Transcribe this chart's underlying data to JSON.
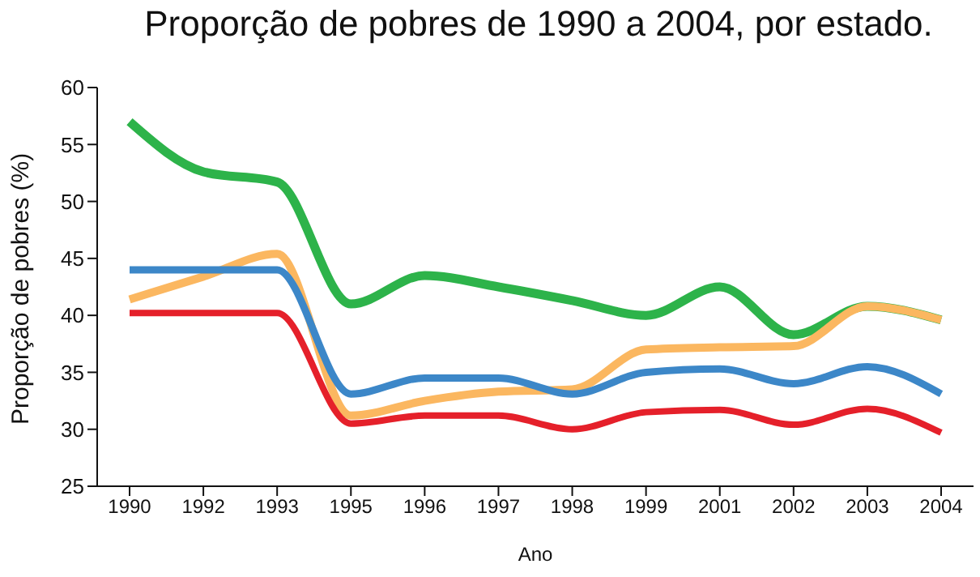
{
  "chart_data": {
    "type": "line",
    "title": "Proporção de pobres de 1990 a 2004, por estado.",
    "xlabel": "Ano",
    "ylabel": "Proporção de pobres (%)",
    "categories": [
      "1990",
      "1992",
      "1993",
      "1995",
      "1996",
      "1997",
      "1998",
      "1999",
      "2001",
      "2002",
      "2003",
      "2004"
    ],
    "series": [
      {
        "color": "#2db34a",
        "values": [
          57,
          52.6,
          51.7,
          41,
          43.5,
          42.5,
          41.3,
          40,
          42.5,
          38.3,
          40.8,
          39.6
        ]
      },
      {
        "color": "#fbb760",
        "values": [
          41.4,
          43.4,
          45.4,
          31.2,
          32.5,
          33.3,
          33.5,
          37,
          37.2,
          37.3,
          40.8,
          39.6
        ]
      },
      {
        "color": "#3c87c8",
        "values": [
          44,
          44,
          44,
          33.1,
          34.5,
          34.5,
          33.1,
          35,
          35.3,
          34,
          35.5,
          33.1
        ]
      },
      {
        "color": "#e5202a",
        "values": [
          40.2,
          40.2,
          40.2,
          30.5,
          31.2,
          31.2,
          30,
          31.5,
          31.7,
          30.4,
          31.8,
          29.7
        ]
      }
    ],
    "ylim": [
      25,
      60
    ],
    "yticks": [
      25,
      30,
      35,
      40,
      45,
      50,
      55,
      60
    ],
    "grid": false,
    "legend": false
  }
}
